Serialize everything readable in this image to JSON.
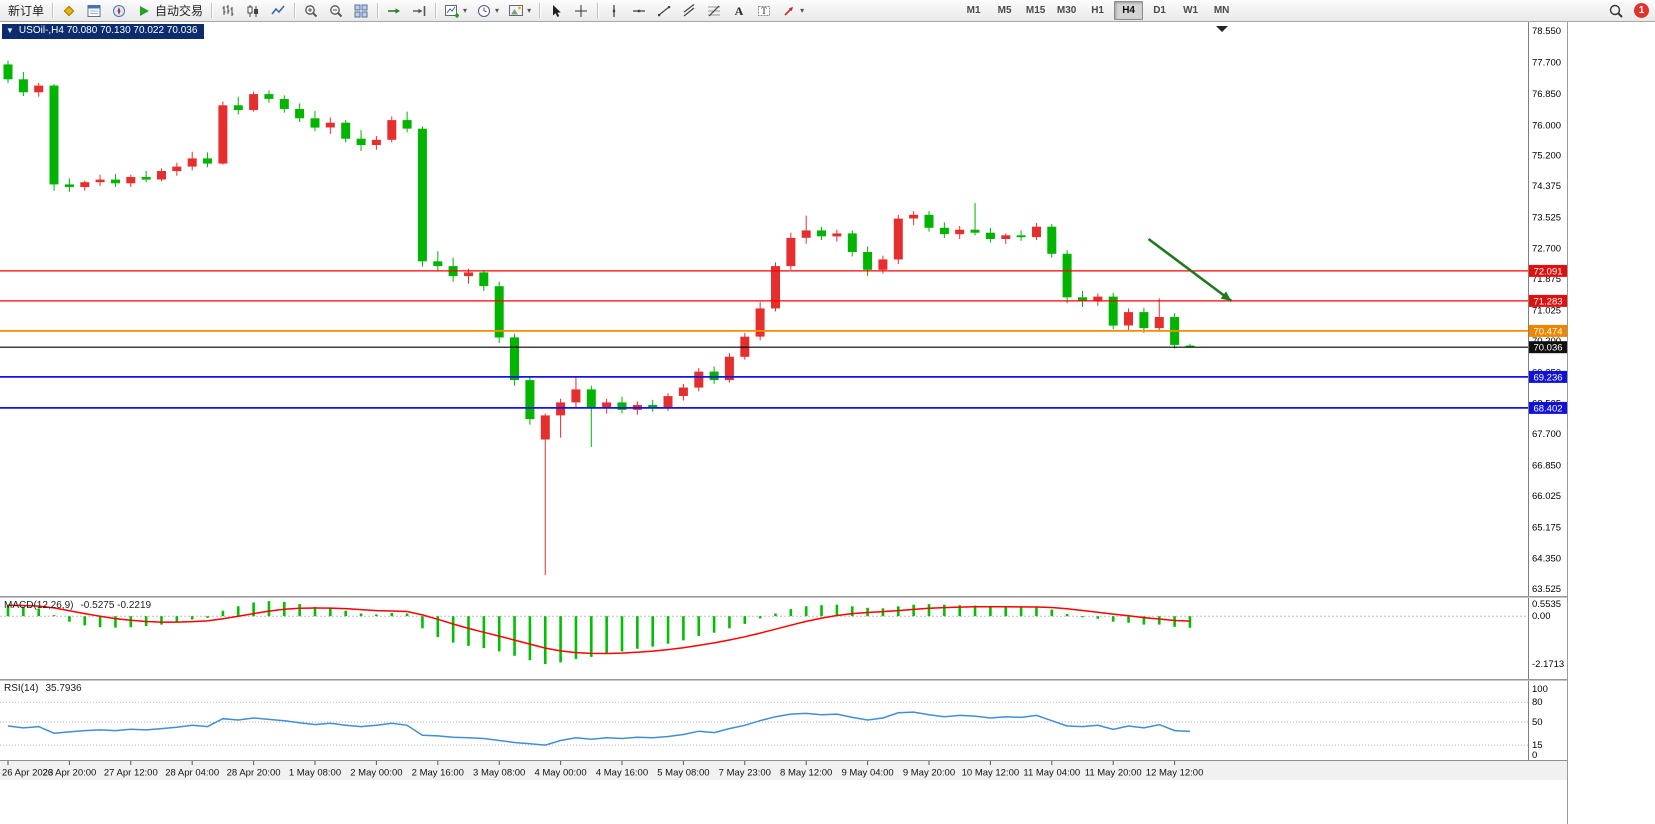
{
  "toolbar": {
    "new_order_label": "新订单",
    "autotrading_label": "自动交易",
    "timeframes": [
      "M1",
      "M5",
      "M15",
      "M30",
      "H1",
      "H4",
      "D1",
      "W1",
      "MN"
    ],
    "active_timeframe": "H4",
    "notification_count": "1",
    "icon_names": [
      "metaeditor",
      "market-watch",
      "navigator",
      "autotrading-play",
      "bar-chart",
      "candlestick-chart",
      "line-chart",
      "zoom-in",
      "zoom-out",
      "tile-windows",
      "auto-scroll",
      "chart-shift",
      "new-chart-dropdown",
      "periods-dropdown",
      "templates-dropdown",
      "cursor",
      "crosshair",
      "vertical-line",
      "horizontal-line",
      "trendline",
      "equidistant-channel",
      "fibonacci-retracement",
      "text",
      "text-label",
      "arrows-dropdown",
      "search",
      "notification"
    ]
  },
  "chart_window": {
    "title": "USOil-,H4 70.080 70.130 70.022 70.036",
    "symbol_period": "USOil-,H4",
    "open": "70.080",
    "high": "70.130",
    "low": "70.022",
    "close": "70.036"
  },
  "chart_data": [
    {
      "type": "candlestick",
      "title": "USOil-,H4",
      "grid": false,
      "legend": false,
      "x_labels": [
        "26 Apr 2023",
        "26 Apr 20:00",
        "27 Apr 12:00",
        "28 Apr 04:00",
        "28 Apr 20:00",
        "1 May 08:00",
        "2 May 00:00",
        "2 May 16:00",
        "3 May 08:00",
        "4 May 00:00",
        "4 May 16:00",
        "5 May 08:00",
        "7 May 23:00",
        "8 May 12:00",
        "9 May 04:00",
        "9 May 20:00",
        "10 May 12:00",
        "11 May 04:00",
        "11 May 20:00",
        "12 May 12:00"
      ],
      "candles_per_label": 4,
      "y_ticks": [
        "78.550",
        "77.700",
        "76.850",
        "76.000",
        "75.200",
        "74.375",
        "73.525",
        "72.700",
        "71.875",
        "71.025",
        "70.200",
        "69.350",
        "68.525",
        "67.700",
        "66.850",
        "66.025",
        "65.175",
        "64.350",
        "63.525"
      ],
      "ohlc": [
        [
          77.65,
          77.75,
          77.15,
          77.25
        ],
        [
          77.25,
          77.45,
          76.8,
          76.9
        ],
        [
          76.9,
          77.15,
          76.78,
          77.08
        ],
        [
          77.08,
          77.12,
          74.25,
          74.42
        ],
        [
          74.42,
          74.58,
          74.22,
          74.35
        ],
        [
          74.35,
          74.52,
          74.25,
          74.48
        ],
        [
          74.48,
          74.68,
          74.38,
          74.55
        ],
        [
          74.55,
          74.7,
          74.35,
          74.45
        ],
        [
          74.45,
          74.68,
          74.35,
          74.62
        ],
        [
          74.62,
          74.78,
          74.48,
          74.55
        ],
        [
          74.55,
          74.85,
          74.5,
          74.78
        ],
        [
          74.78,
          75.0,
          74.65,
          74.9
        ],
        [
          74.9,
          75.3,
          74.8,
          75.12
        ],
        [
          75.12,
          75.28,
          74.88,
          74.98
        ],
        [
          74.98,
          76.65,
          74.95,
          76.55
        ],
        [
          76.55,
          76.78,
          76.3,
          76.42
        ],
        [
          76.42,
          76.92,
          76.38,
          76.85
        ],
        [
          76.85,
          76.95,
          76.62,
          76.72
        ],
        [
          76.72,
          76.82,
          76.35,
          76.45
        ],
        [
          76.45,
          76.6,
          76.1,
          76.2
        ],
        [
          76.2,
          76.4,
          75.85,
          75.95
        ],
        [
          75.95,
          76.22,
          75.78,
          76.08
        ],
        [
          76.08,
          76.15,
          75.55,
          75.65
        ],
        [
          75.65,
          75.88,
          75.32,
          75.48
        ],
        [
          75.48,
          75.72,
          75.35,
          75.62
        ],
        [
          75.62,
          76.25,
          75.55,
          76.15
        ],
        [
          76.15,
          76.38,
          75.82,
          75.92
        ],
        [
          75.92,
          75.98,
          72.2,
          72.35
        ],
        [
          72.35,
          72.62,
          72.1,
          72.22
        ],
        [
          72.22,
          72.45,
          71.8,
          71.95
        ],
        [
          71.95,
          72.15,
          71.75,
          72.05
        ],
        [
          72.05,
          72.12,
          71.55,
          71.68
        ],
        [
          71.68,
          71.8,
          70.15,
          70.3
        ],
        [
          70.3,
          70.4,
          69.0,
          69.15
        ],
        [
          69.15,
          69.25,
          67.95,
          68.1
        ],
        [
          67.55,
          68.25,
          63.9,
          68.2
        ],
        [
          68.2,
          68.65,
          67.6,
          68.55
        ],
        [
          68.55,
          69.22,
          68.4,
          68.9
        ],
        [
          68.9,
          69.0,
          67.35,
          68.4
        ],
        [
          68.4,
          68.65,
          68.25,
          68.55
        ],
        [
          68.55,
          68.7,
          68.25,
          68.35
        ],
        [
          68.35,
          68.58,
          68.22,
          68.48
        ],
        [
          68.48,
          68.62,
          68.3,
          68.4
        ],
        [
          68.4,
          68.8,
          68.32,
          68.72
        ],
        [
          68.72,
          69.05,
          68.6,
          68.95
        ],
        [
          68.95,
          69.48,
          68.85,
          69.38
        ],
        [
          69.38,
          69.52,
          69.05,
          69.15
        ],
        [
          69.15,
          69.88,
          69.08,
          69.78
        ],
        [
          69.78,
          70.42,
          69.7,
          70.32
        ],
        [
          70.32,
          71.25,
          70.22,
          71.08
        ],
        [
          71.08,
          72.32,
          71.0,
          72.22
        ],
        [
          72.22,
          73.12,
          72.12,
          72.98
        ],
        [
          72.98,
          73.58,
          72.82,
          73.18
        ],
        [
          73.18,
          73.28,
          72.92,
          73.02
        ],
        [
          73.02,
          73.2,
          72.88,
          73.1
        ],
        [
          73.1,
          73.18,
          72.48,
          72.6
        ],
        [
          72.6,
          72.75,
          71.95,
          72.12
        ],
        [
          72.12,
          72.5,
          72.02,
          72.4
        ],
        [
          72.4,
          73.6,
          72.28,
          73.5
        ],
        [
          73.5,
          73.7,
          73.32,
          73.6
        ],
        [
          73.6,
          73.7,
          73.15,
          73.25
        ],
        [
          73.25,
          73.4,
          72.98,
          73.08
        ],
        [
          73.08,
          73.3,
          72.95,
          73.2
        ],
        [
          73.2,
          73.92,
          73.05,
          73.12
        ],
        [
          73.12,
          73.25,
          72.85,
          72.95
        ],
        [
          72.95,
          73.1,
          72.82,
          73.05
        ],
        [
          73.05,
          73.18,
          72.9,
          73.0
        ],
        [
          73.0,
          73.38,
          72.92,
          73.28
        ],
        [
          73.28,
          73.35,
          72.45,
          72.55
        ],
        [
          72.55,
          72.65,
          71.22,
          71.38
        ],
        [
          71.38,
          71.55,
          71.12,
          71.28
        ],
        [
          71.28,
          71.48,
          71.15,
          71.4
        ],
        [
          71.4,
          71.5,
          70.52,
          70.62
        ],
        [
          70.62,
          71.08,
          70.5,
          70.98
        ],
        [
          70.98,
          71.1,
          70.42,
          70.55
        ],
        [
          70.55,
          71.35,
          70.45,
          70.85
        ],
        [
          70.85,
          70.95,
          70.0,
          70.1
        ],
        [
          70.08,
          70.13,
          70.022,
          70.036
        ]
      ],
      "price_lines": [
        {
          "label": "72.091",
          "value": 72.091,
          "color": "#ff0000",
          "width": 1.2,
          "badge": "#e01010"
        },
        {
          "label": "71.283",
          "value": 71.283,
          "color": "#ff0000",
          "width": 1.2,
          "badge": "#e01010"
        },
        {
          "label": "70.474",
          "value": 70.474,
          "color": "#ff8a00",
          "width": 1.8,
          "badge": "#ef8600"
        },
        {
          "label": "70.036",
          "value": 70.036,
          "color": "#000000",
          "width": 1.2,
          "badge": "#101010"
        },
        {
          "label": "69.236",
          "value": 69.236,
          "color": "#1414e6",
          "width": 1.8,
          "badge": "#1212d6"
        },
        {
          "label": "68.402",
          "value": 68.402,
          "color": "#1414e6",
          "width": 1.8,
          "badge": "#1212d6"
        }
      ],
      "current_price": "70.036",
      "arrow_annotation": {
        "from_index": 74.3,
        "from_price": 72.95,
        "to_index": 79.7,
        "to_price": 71.28,
        "color": "#1e7a1e"
      },
      "colors": {
        "up": "#e52f2f",
        "down": "#00b400"
      }
    },
    {
      "type": "bar",
      "name": "MACD(12,26,9)",
      "values_text": "-0.5275 -0.2219",
      "y_ticks": [
        "0.5535",
        "0.00",
        "-2.1713"
      ],
      "histogram": [
        0.5,
        0.42,
        0.35,
        0.05,
        -0.25,
        -0.42,
        -0.5,
        -0.52,
        -0.5,
        -0.45,
        -0.38,
        -0.28,
        -0.15,
        -0.08,
        0.25,
        0.45,
        0.62,
        0.68,
        0.65,
        0.55,
        0.42,
        0.35,
        0.25,
        0.12,
        0.08,
        0.15,
        0.12,
        -0.55,
        -0.95,
        -1.2,
        -1.35,
        -1.45,
        -1.6,
        -1.8,
        -2.0,
        -2.17,
        -2.1,
        -1.95,
        -1.85,
        -1.7,
        -1.6,
        -1.48,
        -1.38,
        -1.25,
        -1.1,
        -0.9,
        -0.75,
        -0.55,
        -0.35,
        -0.1,
        0.12,
        0.32,
        0.45,
        0.5,
        0.52,
        0.45,
        0.38,
        0.36,
        0.45,
        0.52,
        0.55,
        0.52,
        0.5,
        0.48,
        0.44,
        0.42,
        0.4,
        0.4,
        0.3,
        0.1,
        -0.05,
        -0.12,
        -0.25,
        -0.3,
        -0.38,
        -0.38,
        -0.48,
        -0.5275
      ],
      "signal": [
        0.5,
        0.484,
        0.457,
        0.376,
        0.251,
        0.117,
        -0.006,
        -0.109,
        -0.187,
        -0.24,
        -0.268,
        -0.27,
        -0.246,
        -0.213,
        -0.12,
        -0.006,
        0.119,
        0.231,
        0.315,
        0.362,
        0.374,
        0.369,
        0.345,
        0.3,
        0.256,
        0.235,
        0.212,
        0.06,
        -0.142,
        -0.354,
        -0.553,
        -0.732,
        -0.906,
        -1.085,
        -1.268,
        -1.448,
        -1.578,
        -1.653,
        -1.692,
        -1.694,
        -1.675,
        -1.636,
        -1.585,
        -1.518,
        -1.434,
        -1.327,
        -1.212,
        -1.08,
        -0.934,
        -0.767,
        -0.59,
        -0.408,
        -0.236,
        -0.089,
        0.033,
        0.116,
        0.169,
        0.207,
        0.256,
        0.309,
        0.357,
        0.39,
        0.412,
        0.426,
        0.429,
        0.427,
        0.422,
        0.418,
        0.394,
        0.335,
        0.258,
        0.182,
        0.096,
        0.017,
        -0.062,
        -0.126,
        -0.197,
        -0.222
      ],
      "colors": {
        "histogram": "#00c000",
        "signal": "#ff0000"
      }
    },
    {
      "type": "line",
      "name": "RSI(14)",
      "value_text": "35.7936",
      "y_ticks": [
        "100",
        "80",
        "50",
        "15",
        "0"
      ],
      "levels": [
        80,
        50,
        15
      ],
      "y_range": [
        0,
        100
      ],
      "values": [
        44,
        41,
        43,
        33,
        35,
        37,
        38,
        37,
        39,
        38,
        40,
        42,
        45,
        43,
        55,
        53,
        56,
        54,
        52,
        49,
        46,
        48,
        45,
        43,
        45,
        48,
        45,
        30,
        29,
        27,
        26,
        25,
        22,
        19,
        17,
        15,
        22,
        26,
        24,
        26,
        25,
        27,
        26,
        28,
        31,
        36,
        34,
        40,
        45,
        52,
        58,
        62,
        63,
        61,
        62,
        57,
        53,
        56,
        64,
        65,
        61,
        58,
        60,
        59,
        56,
        58,
        57,
        60,
        52,
        44,
        43,
        45,
        39,
        44,
        41,
        46,
        37,
        35.79
      ],
      "colors": {
        "line": "#3e8fd8"
      }
    }
  ]
}
